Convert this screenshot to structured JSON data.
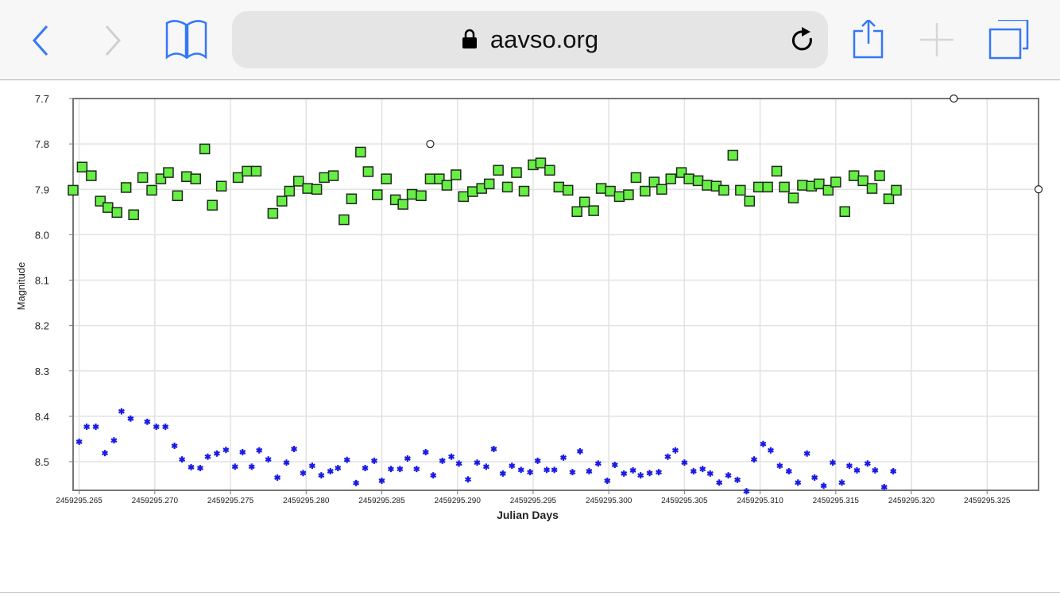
{
  "browser": {
    "url": "aavso.org",
    "back_icon": "chevron-left-icon",
    "forward_icon": "chevron-right-icon",
    "bookmarks_icon": "book-icon",
    "lock_icon": "lock-icon",
    "reload_icon": "reload-icon",
    "share_icon": "share-icon",
    "new_tab_icon": "plus-icon",
    "tabs_icon": "tabs-icon",
    "accent": "#3478f6"
  },
  "chart_data": {
    "type": "scatter",
    "title": "",
    "xlabel": "Julian Days",
    "ylabel": "Magnitude",
    "x_offset": 2459295,
    "xlim": [
      0.2646,
      0.3284
    ],
    "ylim": [
      7.7,
      8.563
    ],
    "y_inverted": true,
    "grid": true,
    "x_ticks": [
      0.265,
      0.27,
      0.275,
      0.28,
      0.285,
      0.29,
      0.295,
      0.3,
      0.305,
      0.31,
      0.315,
      0.32,
      0.325
    ],
    "x_tick_labels": [
      "2459295.265",
      "2459295.270",
      "2459295.275",
      "2459295.280",
      "2459295.285",
      "2459295.290",
      "2459295.295",
      "2459295.300",
      "2459295.305",
      "2459295.310",
      "2459295.315",
      "2459295.320",
      "2459295.325"
    ],
    "y_ticks": [
      7.7,
      7.8,
      7.9,
      8.0,
      8.1,
      8.2,
      8.3,
      8.4,
      8.5
    ],
    "y_tick_labels": [
      "7.7",
      "7.8",
      "7.9",
      "8.0",
      "8.1",
      "8.2",
      "8.3",
      "8.4",
      "8.5"
    ],
    "series": [
      {
        "name": "green-squares",
        "marker": "square",
        "color": "#66ee44",
        "x": [
          0.2646,
          0.2652,
          0.2658,
          0.2664,
          0.2669,
          0.2675,
          0.2681,
          0.2686,
          0.2692,
          0.2698,
          0.2704,
          0.2709,
          0.2715,
          0.2721,
          0.2727,
          0.2733,
          0.2738,
          0.2744,
          0.2755,
          0.2761,
          0.2767,
          0.2778,
          0.2784,
          0.2789,
          0.2795,
          0.2801,
          0.2807,
          0.2812,
          0.2818,
          0.2825,
          0.283,
          0.2836,
          0.2841,
          0.2847,
          0.2853,
          0.2859,
          0.2864,
          0.287,
          0.2876,
          0.2882,
          0.2888,
          0.2893,
          0.2899,
          0.2904,
          0.291,
          0.2916,
          0.2921,
          0.2927,
          0.2933,
          0.2939,
          0.2944,
          0.295,
          0.2955,
          0.2961,
          0.2967,
          0.2973,
          0.2979,
          0.2984,
          0.299,
          0.2995,
          0.3001,
          0.3007,
          0.3013,
          0.3018,
          0.3024,
          0.303,
          0.3035,
          0.3041,
          0.3048,
          0.3053,
          0.3059,
          0.3065,
          0.3071,
          0.3076,
          0.3082,
          0.3087,
          0.3093,
          0.3099,
          0.3105,
          0.3111,
          0.3116,
          0.3122,
          0.3128,
          0.3134,
          0.3139,
          0.3145,
          0.315,
          0.3156,
          0.3162,
          0.3168,
          0.3174,
          0.3179,
          0.3185,
          0.319
        ],
        "y": [
          7.902,
          7.851,
          7.87,
          7.926,
          7.94,
          7.951,
          7.896,
          7.956,
          7.874,
          7.902,
          7.877,
          7.863,
          7.914,
          7.872,
          7.877,
          7.811,
          7.935,
          7.893,
          7.874,
          7.86,
          7.86,
          7.953,
          7.926,
          7.904,
          7.882,
          7.898,
          7.9,
          7.874,
          7.87,
          7.967,
          7.921,
          7.818,
          7.861,
          7.912,
          7.877,
          7.923,
          7.933,
          7.911,
          7.914,
          7.877,
          7.877,
          7.891,
          7.868,
          7.916,
          7.905,
          7.898,
          7.888,
          7.858,
          7.895,
          7.863,
          7.904,
          7.846,
          7.842,
          7.858,
          7.895,
          7.902,
          7.949,
          7.928,
          7.947,
          7.898,
          7.904,
          7.916,
          7.912,
          7.874,
          7.904,
          7.884,
          7.9,
          7.877,
          7.863,
          7.877,
          7.881,
          7.891,
          7.893,
          7.902,
          7.825,
          7.902,
          7.926,
          7.895,
          7.895,
          7.86,
          7.895,
          7.919,
          7.891,
          7.893,
          7.888,
          7.902,
          7.884,
          7.949,
          7.87,
          7.881,
          7.898,
          7.87,
          7.921,
          7.902
        ]
      },
      {
        "name": "blue-stars",
        "marker": "star",
        "color": "#1a1ae6",
        "x": [
          0.265,
          0.2655,
          0.2661,
          0.2667,
          0.2673,
          0.2678,
          0.2684,
          0.2695,
          0.2701,
          0.2707,
          0.2713,
          0.2718,
          0.2724,
          0.273,
          0.2735,
          0.2741,
          0.2747,
          0.2753,
          0.2758,
          0.2764,
          0.2769,
          0.2775,
          0.2781,
          0.2787,
          0.2792,
          0.2798,
          0.2804,
          0.281,
          0.2816,
          0.2821,
          0.2827,
          0.2833,
          0.2839,
          0.2845,
          0.285,
          0.2856,
          0.2862,
          0.2867,
          0.2873,
          0.2879,
          0.2884,
          0.289,
          0.2896,
          0.2901,
          0.2907,
          0.2913,
          0.2919,
          0.2924,
          0.293,
          0.2936,
          0.2942,
          0.2948,
          0.2953,
          0.2959,
          0.2964,
          0.297,
          0.2976,
          0.2981,
          0.2987,
          0.2993,
          0.2999,
          0.3004,
          0.301,
          0.3016,
          0.3021,
          0.3027,
          0.3033,
          0.3039,
          0.3044,
          0.305,
          0.3056,
          0.3062,
          0.3067,
          0.3073,
          0.3079,
          0.3085,
          0.3091,
          0.3096,
          0.3102,
          0.3107,
          0.3113,
          0.3119,
          0.3125,
          0.3131,
          0.3136,
          0.3142,
          0.3148,
          0.3154,
          0.3159,
          0.3164,
          0.3171,
          0.3176,
          0.3182,
          0.3188
        ],
        "y": [
          8.456,
          8.423,
          8.423,
          8.481,
          8.453,
          8.389,
          8.405,
          8.412,
          8.423,
          8.423,
          8.465,
          8.495,
          8.512,
          8.514,
          8.489,
          8.482,
          8.474,
          8.511,
          8.479,
          8.511,
          8.475,
          8.495,
          8.535,
          8.502,
          8.472,
          8.525,
          8.509,
          8.53,
          8.521,
          8.514,
          8.496,
          8.547,
          8.514,
          8.498,
          8.542,
          8.516,
          8.516,
          8.493,
          8.516,
          8.479,
          8.53,
          8.498,
          8.489,
          8.504,
          8.539,
          8.502,
          8.511,
          8.472,
          8.526,
          8.509,
          8.518,
          8.523,
          8.498,
          8.518,
          8.518,
          8.491,
          8.523,
          8.477,
          8.521,
          8.504,
          8.542,
          8.507,
          8.526,
          8.519,
          8.53,
          8.525,
          8.523,
          8.489,
          8.475,
          8.502,
          8.521,
          8.516,
          8.526,
          8.546,
          8.53,
          8.54,
          8.565,
          8.495,
          8.461,
          8.475,
          8.509,
          8.521,
          8.546,
          8.482,
          8.535,
          8.553,
          8.502,
          8.546,
          8.509,
          8.519,
          8.504,
          8.519,
          8.556,
          8.521
        ]
      },
      {
        "name": "open-circles",
        "marker": "circle",
        "color": "#222222",
        "x": [
          0.2882,
          0.3228,
          0.3284
        ],
        "y": [
          7.8,
          7.7,
          7.9
        ]
      }
    ]
  }
}
